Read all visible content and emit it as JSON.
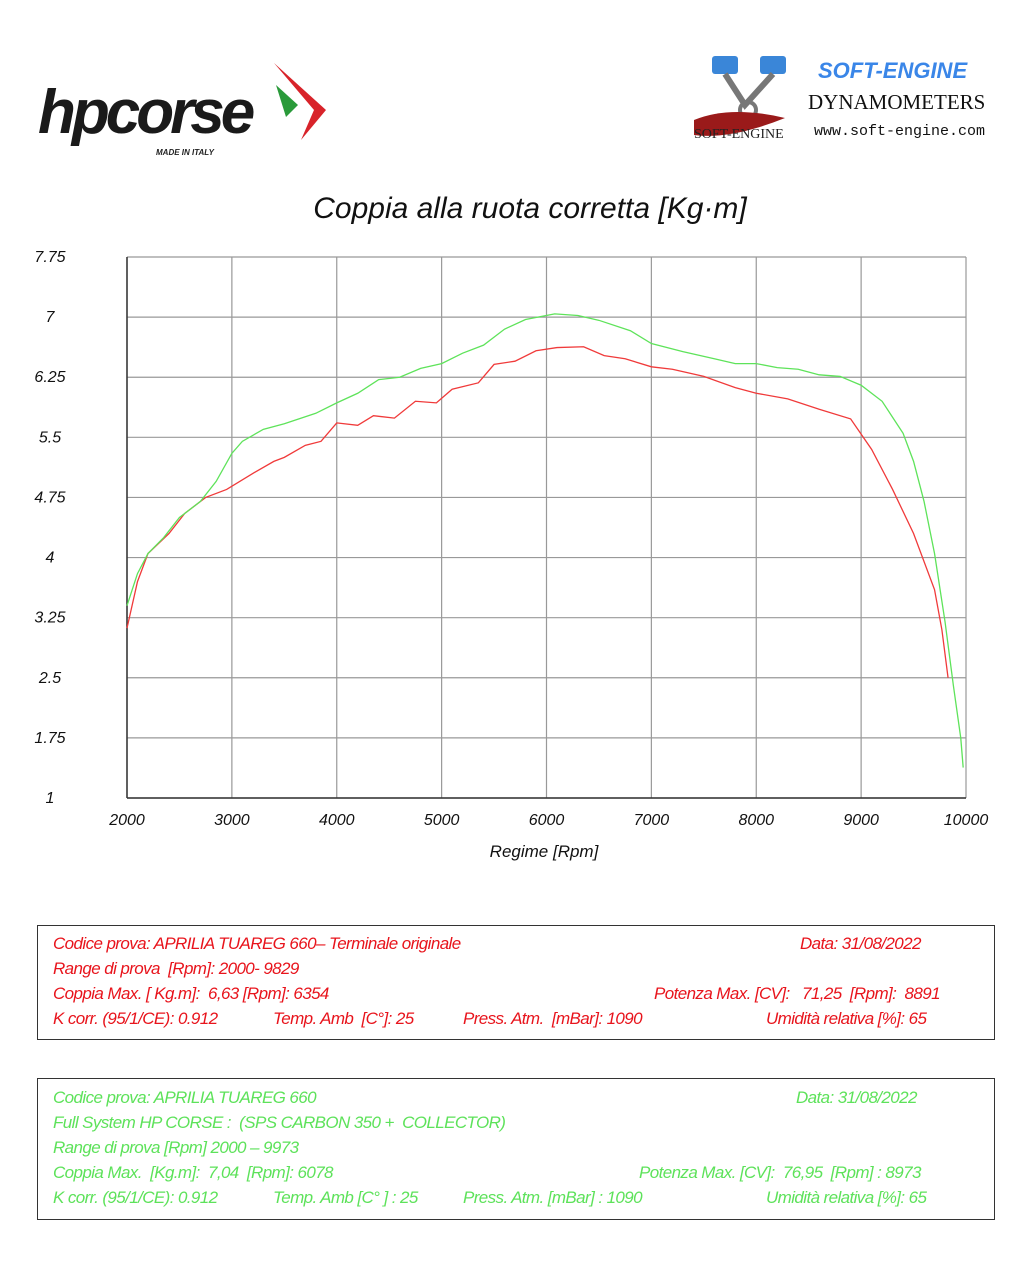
{
  "logos": {
    "hp_brand": "hpcorse",
    "hp_tagline": "MADE IN ITALY",
    "se_brand": "SOFT-ENGINE",
    "se_sub": "DYNAMOMETERS",
    "se_url": "www.soft-engine.com",
    "se_mark": "SOFT-ENGINE"
  },
  "chart_data": {
    "type": "line",
    "title": "Coppia alla ruota corretta [Kg·m]",
    "xlabel": "Regime [Rpm]",
    "ylabel": "",
    "xlim": [
      2000,
      10000
    ],
    "ylim": [
      1,
      7.75
    ],
    "xticks": [
      "2000",
      "3000",
      "4000",
      "5000",
      "6000",
      "7000",
      "8000",
      "9000",
      "10000"
    ],
    "yticks": [
      "7.75",
      "7",
      "6.25",
      "5.5",
      "4.75",
      "4",
      "3.25",
      "2.5",
      "1.75",
      "1"
    ],
    "grid": true,
    "series": [
      {
        "color": "#f03a3a",
        "points": [
          [
            2000,
            3.12
          ],
          [
            2100,
            3.7
          ],
          [
            2200,
            4.05
          ],
          [
            2400,
            4.3
          ],
          [
            2550,
            4.55
          ],
          [
            2750,
            4.75
          ],
          [
            2950,
            4.85
          ],
          [
            3200,
            5.05
          ],
          [
            3400,
            5.2
          ],
          [
            3500,
            5.25
          ],
          [
            3700,
            5.4
          ],
          [
            3850,
            5.45
          ],
          [
            4000,
            5.68
          ],
          [
            4200,
            5.65
          ],
          [
            4350,
            5.77
          ],
          [
            4550,
            5.74
          ],
          [
            4750,
            5.95
          ],
          [
            4950,
            5.93
          ],
          [
            5100,
            6.1
          ],
          [
            5350,
            6.18
          ],
          [
            5500,
            6.41
          ],
          [
            5700,
            6.45
          ],
          [
            5900,
            6.58
          ],
          [
            6100,
            6.62
          ],
          [
            6354,
            6.63
          ],
          [
            6550,
            6.52
          ],
          [
            6750,
            6.48
          ],
          [
            7000,
            6.38
          ],
          [
            7200,
            6.35
          ],
          [
            7500,
            6.26
          ],
          [
            7800,
            6.12
          ],
          [
            8000,
            6.05
          ],
          [
            8300,
            5.98
          ],
          [
            8600,
            5.85
          ],
          [
            8900,
            5.73
          ],
          [
            9100,
            5.35
          ],
          [
            9300,
            4.85
          ],
          [
            9500,
            4.3
          ],
          [
            9700,
            3.6
          ],
          [
            9770,
            3.1
          ],
          [
            9829,
            2.5
          ]
        ]
      },
      {
        "color": "#5ee35a",
        "points": [
          [
            2000,
            3.4
          ],
          [
            2100,
            3.8
          ],
          [
            2200,
            4.05
          ],
          [
            2350,
            4.25
          ],
          [
            2500,
            4.5
          ],
          [
            2700,
            4.7
          ],
          [
            2850,
            4.95
          ],
          [
            3000,
            5.3
          ],
          [
            3100,
            5.45
          ],
          [
            3300,
            5.6
          ],
          [
            3500,
            5.67
          ],
          [
            3800,
            5.8
          ],
          [
            4000,
            5.93
          ],
          [
            4200,
            6.05
          ],
          [
            4400,
            6.22
          ],
          [
            4600,
            6.25
          ],
          [
            4800,
            6.36
          ],
          [
            5000,
            6.42
          ],
          [
            5200,
            6.55
          ],
          [
            5400,
            6.65
          ],
          [
            5600,
            6.85
          ],
          [
            5800,
            6.97
          ],
          [
            6078,
            7.04
          ],
          [
            6300,
            7.02
          ],
          [
            6500,
            6.96
          ],
          [
            6800,
            6.83
          ],
          [
            7000,
            6.67
          ],
          [
            7300,
            6.57
          ],
          [
            7600,
            6.48
          ],
          [
            7800,
            6.42
          ],
          [
            8000,
            6.42
          ],
          [
            8200,
            6.37
          ],
          [
            8400,
            6.35
          ],
          [
            8600,
            6.28
          ],
          [
            8800,
            6.26
          ],
          [
            9000,
            6.15
          ],
          [
            9200,
            5.95
          ],
          [
            9400,
            5.55
          ],
          [
            9500,
            5.2
          ],
          [
            9600,
            4.7
          ],
          [
            9700,
            4.05
          ],
          [
            9800,
            3.2
          ],
          [
            9880,
            2.4
          ],
          [
            9950,
            1.75
          ],
          [
            9973,
            1.38
          ]
        ]
      }
    ]
  },
  "red_box": {
    "code": "Codice prova: APRILIA TUAREG 660– Terminale originale",
    "date": "Data: 31/08/2022",
    "range": "Range di prova  [Rpm]: 2000- 9829",
    "torque": "Coppia Max. [ Kg.m]:  6,63 [Rpm]: 6354",
    "power": "Potenza Max. [CV]:   71,25  [Rpm]:  8891",
    "kcorr": "K corr. (95/1/CE): 0.912",
    "temp": "Temp. Amb  [C°]: 25",
    "press": "Press. Atm.  [mBar]: 1090",
    "humidity": "Umidità relativa [%]: 65"
  },
  "green_box": {
    "code": "Codice prova: APRILIA TUAREG 660",
    "date": "Data: 31/08/2022",
    "system": "Full System HP CORSE :  (SPS CARBON 350 +  COLLECTOR)",
    "range": "Range di prova [Rpm] 2000 – 9973",
    "torque": "Coppia Max.  [Kg.m]:  7,04  [Rpm]: 6078",
    "power": "Potenza Max. [CV]:  76,95  [Rpm] : 8973",
    "kcorr": "K corr. (95/1/CE): 0.912",
    "temp": "Temp. Amb [C° ] : 25",
    "press": "Press. Atm. [mBar] : 1090",
    "humidity": "Umidità relativa [%]: 65"
  }
}
